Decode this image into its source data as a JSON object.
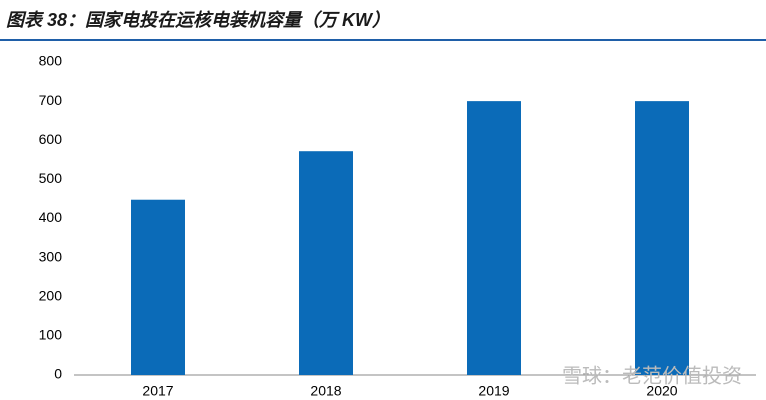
{
  "chart_data": {
    "type": "bar",
    "title": "图表 38：国家电投在运核电装机容量（万 KW）",
    "categories": [
      "2017",
      "2018",
      "2019",
      "2020"
    ],
    "values": [
      448,
      572,
      700,
      700
    ],
    "color": "#0b6bb8",
    "ylim": [
      0,
      800
    ],
    "yticks": [
      0,
      100,
      200,
      300,
      400,
      500,
      600,
      700,
      800
    ],
    "grid": false,
    "watermark": "雪球：老范价值投资"
  }
}
